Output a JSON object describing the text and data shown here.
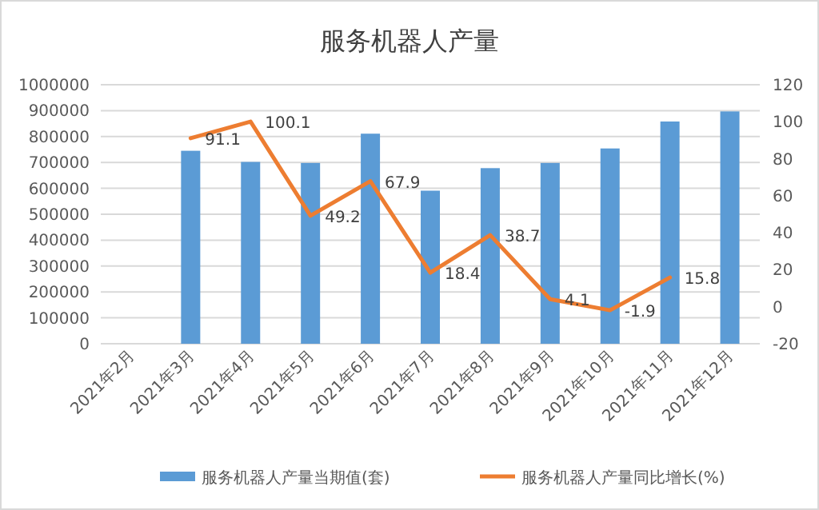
{
  "chart_data": {
    "type": "bar",
    "title": "服务机器人产量",
    "categories": [
      "2021年2月",
      "2021年3月",
      "2021年4月",
      "2021年5月",
      "2021年6月",
      "2021年7月",
      "2021年8月",
      "2021年9月",
      "2021年10月",
      "2021年11月",
      "2021年12月"
    ],
    "series": [
      {
        "name": "服务机器人产量当期值(套)",
        "color": "#5b9bd5",
        "values": [
          null,
          745000,
          702000,
          698000,
          811000,
          591000,
          678000,
          698000,
          754000,
          858000,
          897000
        ]
      },
      {
        "name": "服务机器人产量同比增长(%)",
        "type": "line",
        "axis": "y2",
        "color": "#ed7d31",
        "data_labels": true,
        "values": [
          null,
          91.1,
          100.1,
          49.2,
          67.9,
          18.4,
          38.7,
          4.1,
          -1.9,
          15.8,
          null
        ]
      }
    ],
    "ylim": [
      0,
      1000000
    ],
    "yticks": [
      0,
      100000,
      200000,
      300000,
      400000,
      500000,
      600000,
      700000,
      800000,
      900000,
      1000000
    ],
    "y2lim": [
      -20,
      120
    ],
    "y2ticks": [
      -20,
      0,
      20,
      40,
      60,
      80,
      100,
      120
    ],
    "grid": "y",
    "legend": "bottom"
  }
}
